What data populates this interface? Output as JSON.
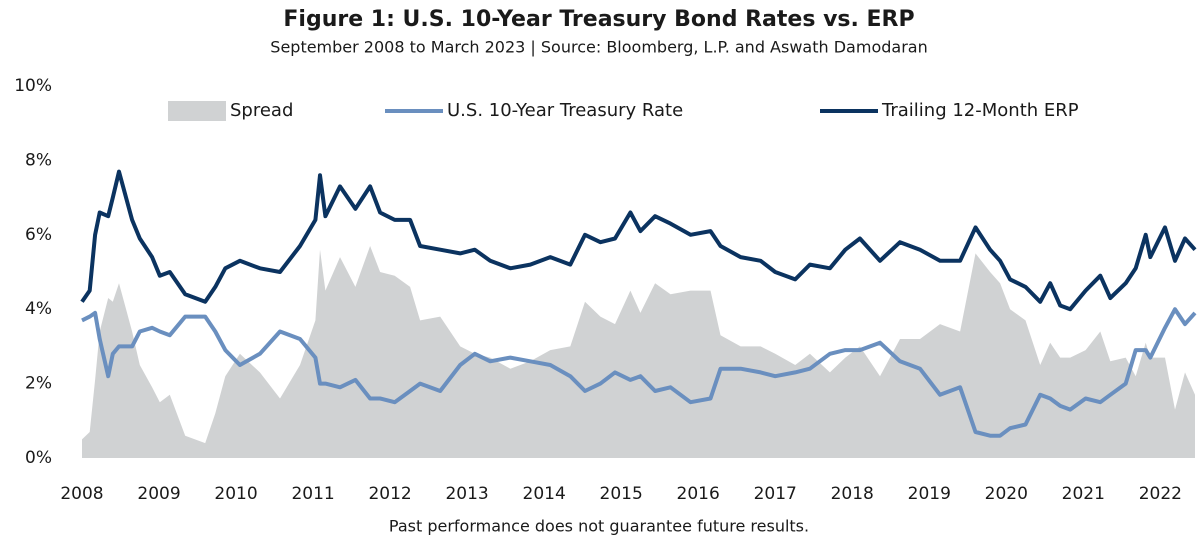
{
  "chart_data": {
    "type": "line",
    "title": "Figure 1: U.S. 10-Year Treasury Bond Rates vs. ERP",
    "subtitle": "September 2008 to March 2023 | Source: Bloomberg, L.P. and Aswath Damodaran",
    "footnote": "Past performance does not guarantee future results.",
    "x": [
      2008.0,
      2008.1,
      2008.17,
      2008.23,
      2008.34,
      2008.4,
      2008.48,
      2008.65,
      2008.75,
      2008.91,
      2009.01,
      2009.14,
      2009.34,
      2009.6,
      2009.73,
      2009.86,
      2010.05,
      2010.31,
      2010.57,
      2010.83,
      2011.03,
      2011.09,
      2011.16,
      2011.35,
      2011.55,
      2011.74,
      2011.87,
      2012.06,
      2012.26,
      2012.39,
      2012.65,
      2012.91,
      2013.1,
      2013.3,
      2013.56,
      2013.82,
      2014.08,
      2014.34,
      2014.53,
      2014.73,
      2014.92,
      2015.12,
      2015.25,
      2015.44,
      2015.64,
      2015.9,
      2016.16,
      2016.29,
      2016.55,
      2016.81,
      2017.0,
      2017.26,
      2017.45,
      2017.71,
      2017.91,
      2018.1,
      2018.36,
      2018.62,
      2018.88,
      2019.14,
      2019.4,
      2019.6,
      2019.79,
      2019.92,
      2020.05,
      2020.25,
      2020.44,
      2020.57,
      2020.7,
      2020.83,
      2021.03,
      2021.22,
      2021.35,
      2021.55,
      2021.68,
      2021.81,
      2021.87,
      2022.06,
      2022.19,
      2022.32,
      2022.45
    ],
    "series": [
      {
        "name": "Spread",
        "style": "area",
        "color": "#d0d2d3",
        "values": [
          0.5,
          0.7,
          2.1,
          3.4,
          4.3,
          4.2,
          4.7,
          3.4,
          2.5,
          1.9,
          1.5,
          1.7,
          0.6,
          0.4,
          1.2,
          2.2,
          2.8,
          2.3,
          1.6,
          2.5,
          3.7,
          5.6,
          4.5,
          5.4,
          4.6,
          5.7,
          5.0,
          4.9,
          4.6,
          3.7,
          3.8,
          3.0,
          2.8,
          2.7,
          2.4,
          2.6,
          2.9,
          3.0,
          4.2,
          3.8,
          3.6,
          4.5,
          3.9,
          4.7,
          4.4,
          4.5,
          4.5,
          3.3,
          3.0,
          3.0,
          2.8,
          2.5,
          2.8,
          2.3,
          2.7,
          3.0,
          2.2,
          3.2,
          3.2,
          3.6,
          3.4,
          5.5,
          5.0,
          4.7,
          4.0,
          3.7,
          2.5,
          3.1,
          2.7,
          2.7,
          2.9,
          3.4,
          2.6,
          2.7,
          2.2,
          3.1,
          2.7,
          2.7,
          1.3,
          2.3,
          1.7
        ]
      },
      {
        "name": "U.S. 10-Year Treasury Rate",
        "style": "line",
        "color": "#6a8fbf",
        "values": [
          3.7,
          3.8,
          3.9,
          3.2,
          2.2,
          2.8,
          3.0,
          3.0,
          3.4,
          3.5,
          3.4,
          3.3,
          3.8,
          3.8,
          3.4,
          2.9,
          2.5,
          2.8,
          3.4,
          3.2,
          2.7,
          2.0,
          2.0,
          1.9,
          2.1,
          1.6,
          1.6,
          1.5,
          1.8,
          2.0,
          1.8,
          2.5,
          2.8,
          2.6,
          2.7,
          2.6,
          2.5,
          2.2,
          1.8,
          2.0,
          2.3,
          2.1,
          2.2,
          1.8,
          1.9,
          1.5,
          1.6,
          2.4,
          2.4,
          2.3,
          2.2,
          2.3,
          2.4,
          2.8,
          2.9,
          2.9,
          3.1,
          2.6,
          2.4,
          1.7,
          1.9,
          0.7,
          0.6,
          0.6,
          0.8,
          0.9,
          1.7,
          1.6,
          1.4,
          1.3,
          1.6,
          1.5,
          1.7,
          2.0,
          2.9,
          2.9,
          2.7,
          3.5,
          4.0,
          3.6,
          3.9
        ]
      },
      {
        "name": "Trailing 12-Month ERP",
        "style": "line",
        "color": "#0b3360",
        "values": [
          4.2,
          4.5,
          6.0,
          6.6,
          6.5,
          7.0,
          7.7,
          6.4,
          5.9,
          5.4,
          4.9,
          5.0,
          4.4,
          4.2,
          4.6,
          5.1,
          5.3,
          5.1,
          5.0,
          5.7,
          6.4,
          7.6,
          6.5,
          7.3,
          6.7,
          7.3,
          6.6,
          6.4,
          6.4,
          5.7,
          5.6,
          5.5,
          5.6,
          5.3,
          5.1,
          5.2,
          5.4,
          5.2,
          6.0,
          5.8,
          5.9,
          6.6,
          6.1,
          6.5,
          6.3,
          6.0,
          6.1,
          5.7,
          5.4,
          5.3,
          5.0,
          4.8,
          5.2,
          5.1,
          5.6,
          5.9,
          5.3,
          5.8,
          5.6,
          5.3,
          5.3,
          6.2,
          5.6,
          5.3,
          4.8,
          4.6,
          4.2,
          4.7,
          4.1,
          4.0,
          4.5,
          4.9,
          4.3,
          4.7,
          5.1,
          6.0,
          5.4,
          6.2,
          5.3,
          5.9,
          5.6
        ]
      }
    ],
    "xlim": [
      2008,
      2022.45
    ],
    "xticks": [
      2008,
      2009,
      2010,
      2011,
      2012,
      2013,
      2014,
      2015,
      2016,
      2017,
      2018,
      2019,
      2020,
      2021,
      2022
    ],
    "ylim": [
      0,
      10
    ],
    "yticks": [
      {
        "value": 0,
        "label": "0%"
      },
      {
        "value": 2,
        "label": "2%"
      },
      {
        "value": 4,
        "label": "4%"
      },
      {
        "value": 6,
        "label": "6%"
      },
      {
        "value": 8,
        "label": "8%"
      },
      {
        "value": 10,
        "label": "10%"
      }
    ],
    "grid": false,
    "legend": "top"
  }
}
